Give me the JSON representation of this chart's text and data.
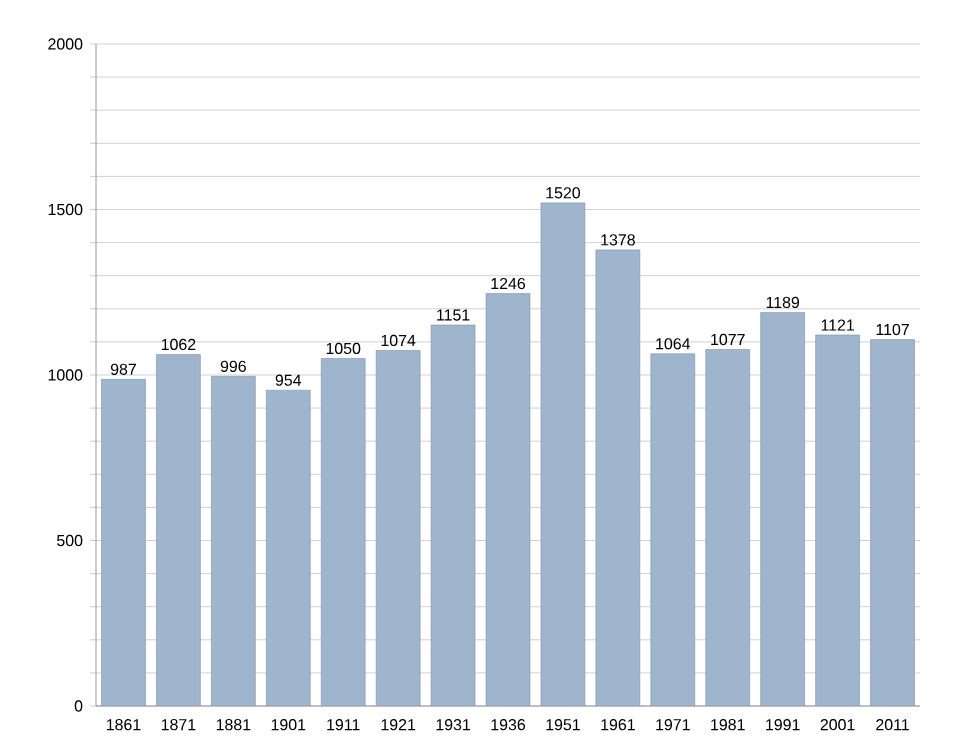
{
  "chart_data": {
    "type": "bar",
    "categories": [
      "1861",
      "1871",
      "1881",
      "1901",
      "1911",
      "1921",
      "1931",
      "1936",
      "1951",
      "1961",
      "1971",
      "1981",
      "1991",
      "2001",
      "2011"
    ],
    "values": [
      987,
      1062,
      996,
      954,
      1050,
      1074,
      1151,
      1246,
      1520,
      1378,
      1064,
      1077,
      1189,
      1121,
      1107
    ],
    "color": "#9fb5cd",
    "ylim": [
      0,
      2000
    ],
    "yticks": [
      0,
      {
        "value": 100,
        "label": null
      },
      {
        "value": 200,
        "label": null
      },
      {
        "value": 300,
        "label": null
      },
      {
        "value": 400,
        "label": null
      },
      500,
      {
        "value": 600,
        "label": null
      },
      {
        "value": 700,
        "label": null
      },
      {
        "value": 800,
        "label": null
      },
      {
        "value": 900,
        "label": null
      },
      1000,
      {
        "value": 1100,
        "label": null
      },
      {
        "value": 1200,
        "label": null
      },
      {
        "value": 1300,
        "label": null
      },
      {
        "value": 1400,
        "label": null
      },
      1500,
      {
        "value": 1600,
        "label": null
      },
      {
        "value": 1700,
        "label": null
      },
      {
        "value": 1800,
        "label": null
      },
      {
        "value": 1900,
        "label": null
      },
      2000
    ],
    "grid": "y",
    "data_labels": true
  }
}
